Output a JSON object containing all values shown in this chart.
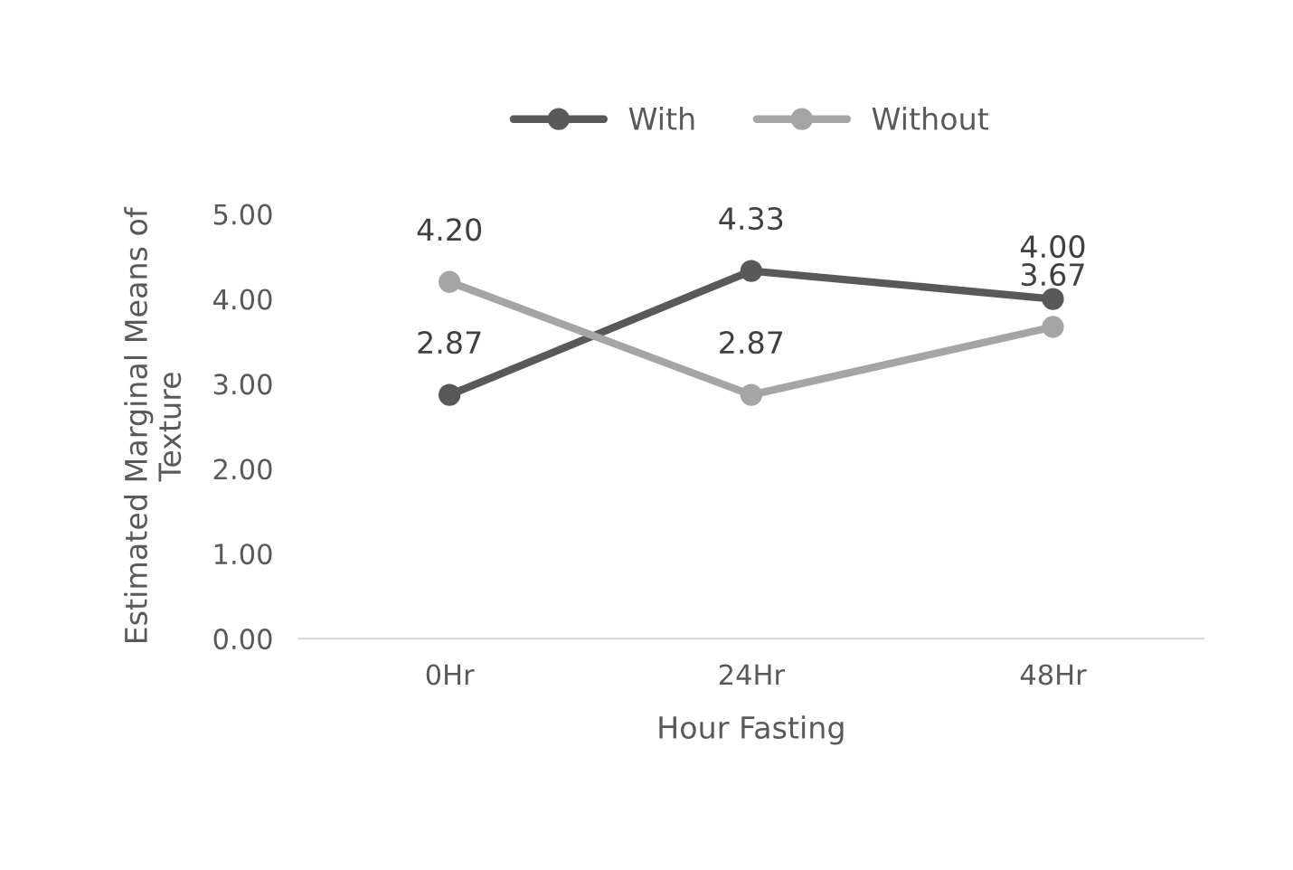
{
  "chart_data": {
    "type": "line",
    "xlabel": "Hour Fasting",
    "ylabel": "Estimated Marginal Means of\nTexture",
    "categories": [
      "0Hr",
      "24Hr",
      "48Hr"
    ],
    "series": [
      {
        "name": "With",
        "color": "#595959",
        "values": [
          2.87,
          4.33,
          4.0
        ],
        "value_labels": [
          "2.87",
          "4.33",
          "4.00"
        ]
      },
      {
        "name": "Without",
        "color": "#a5a5a5",
        "values": [
          4.2,
          2.87,
          3.67
        ],
        "value_labels": [
          "4.20",
          "2.87",
          "3.67"
        ]
      }
    ],
    "ylim": [
      0,
      5
    ],
    "yticks": [
      {
        "value": 0,
        "label": "0.00"
      },
      {
        "value": 1,
        "label": "1.00"
      },
      {
        "value": 2,
        "label": "2.00"
      },
      {
        "value": 3,
        "label": "3.00"
      },
      {
        "value": 4,
        "label": "4.00"
      },
      {
        "value": 5,
        "label": "5.00"
      }
    ],
    "grid": false,
    "legend": "top",
    "marker": "circle",
    "line_style": "solid"
  }
}
